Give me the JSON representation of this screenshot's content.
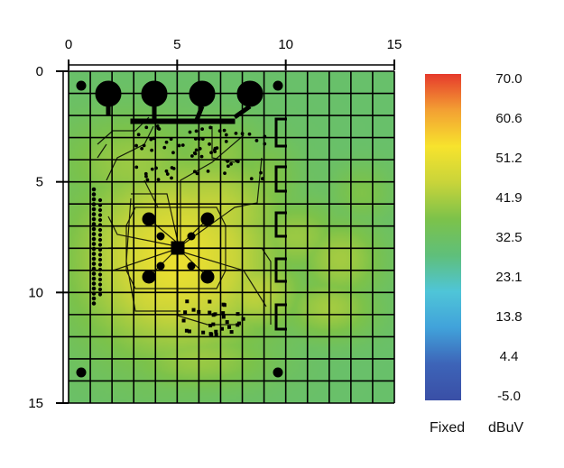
{
  "chart_data": {
    "type": "heatmap",
    "title": "",
    "xlabel": "",
    "ylabel": "",
    "x_ticks": [
      0,
      5,
      10,
      15
    ],
    "y_ticks": [
      0,
      5,
      10,
      15
    ],
    "xlim": [
      0,
      15
    ],
    "ylim": [
      0,
      15
    ],
    "y_direction": "down",
    "grid": true,
    "colorbar": {
      "min": -5.0,
      "max": 70.0,
      "tick_labels": [
        "70.0",
        "60.6",
        "51.2",
        "41.9",
        "32.5",
        "23.1",
        "13.8",
        "4.4",
        "-5.0"
      ],
      "colors": [
        "#3a4fa6",
        "#3d64b8",
        "#41a2da",
        "#4fc5d8",
        "#5fbf7a",
        "#7cc24a",
        "#c8d43a",
        "#f7e32d",
        "#f3a033",
        "#e63a2c"
      ],
      "scale_mode": "Fixed",
      "unit": "dBuV"
    },
    "hotspots": [
      {
        "x": 5.0,
        "y": 8.5,
        "value": 51.0,
        "sx": 3.2,
        "sy": 3.0
      },
      {
        "x": 4.3,
        "y": 9.8,
        "value": 48.0,
        "sx": 2.2,
        "sy": 1.8
      },
      {
        "x": 6.5,
        "y": 6.5,
        "value": 45.0,
        "sx": 2.4,
        "sy": 2.0
      },
      {
        "x": 2.5,
        "y": 9.0,
        "value": 42.0,
        "sx": 1.6,
        "sy": 2.6
      },
      {
        "x": 8.5,
        "y": 10.0,
        "value": 44.0,
        "sx": 1.6,
        "sy": 1.3
      },
      {
        "x": 10.5,
        "y": 7.5,
        "value": 40.0,
        "sx": 1.5,
        "sy": 1.2
      },
      {
        "x": 3.0,
        "y": 4.2,
        "value": 40.0,
        "sx": 2.5,
        "sy": 1.6
      },
      {
        "x": 6.8,
        "y": 3.8,
        "value": 39.0,
        "sx": 1.6,
        "sy": 1.2
      },
      {
        "x": 12.5,
        "y": 8.5,
        "value": 41.0,
        "sx": 1.4,
        "sy": 1.3
      },
      {
        "x": 12.0,
        "y": 10.7,
        "value": 41.0,
        "sx": 1.5,
        "sy": 1.0
      },
      {
        "x": 6.0,
        "y": 13.0,
        "value": 40.0,
        "sx": 2.5,
        "sy": 1.0
      },
      {
        "x": 9.0,
        "y": 5.0,
        "value": 38.0,
        "sx": 1.2,
        "sy": 1.4
      },
      {
        "x": 13.5,
        "y": 5.5,
        "value": 37.0,
        "sx": 1.0,
        "sy": 0.9
      }
    ],
    "background_value": 31.0
  }
}
